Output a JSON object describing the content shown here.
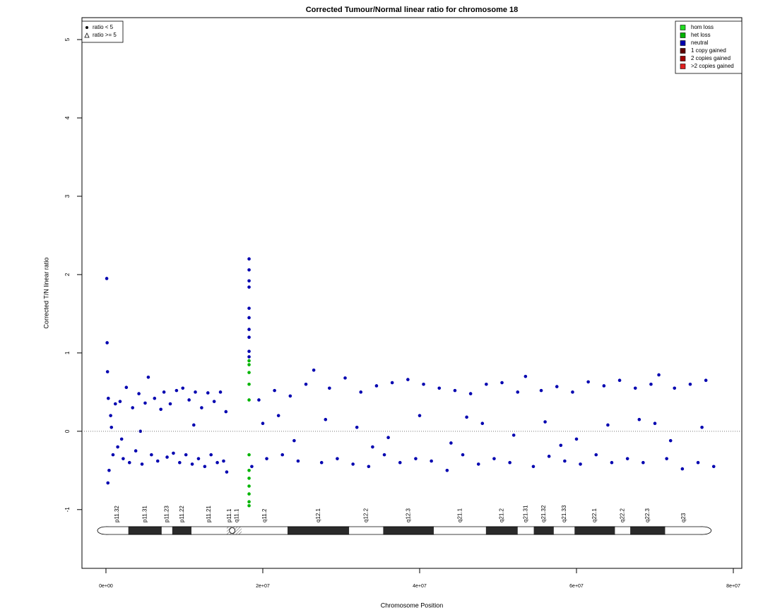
{
  "chart_data": {
    "type": "scatter",
    "title": "Corrected Tumour/Normal linear ratio for chromosome  18",
    "x_label": "Chromosome Position",
    "y_label": "Corrected T/N linear ratio",
    "xlim": [
      -3060000,
      81080000
    ],
    "ylim": [
      -1.75,
      5.28
    ],
    "xticks": [
      {
        "value": 0,
        "label": "0e+00"
      },
      {
        "value": 20000000,
        "label": "2e+07"
      },
      {
        "value": 40000000,
        "label": "4e+07"
      },
      {
        "value": 60000000,
        "label": "6e+07"
      },
      {
        "value": 80000000,
        "label": "8e+07"
      }
    ],
    "yticks": [
      -1,
      0,
      1,
      2,
      3,
      4,
      5
    ],
    "hline": 0,
    "shape_legend": [
      {
        "label": "ratio < 5",
        "shape": "dot"
      },
      {
        "label": "ratio >= 5",
        "shape": "triangle"
      }
    ],
    "series": [
      {
        "name": "hom loss",
        "color": "#22dd22",
        "x": [],
        "values": []
      },
      {
        "name": "het loss",
        "color": "#00b400",
        "x": [
          18250000,
          18250000,
          18250000,
          18250000,
          18250000,
          18250000,
          18250000,
          18250000,
          18250000,
          18250000,
          18250000,
          18250000
        ],
        "values": [
          0.9,
          0.85,
          0.75,
          0.6,
          0.4,
          -0.3,
          -0.5,
          -0.6,
          -0.7,
          -0.8,
          -0.9,
          -0.95
        ]
      },
      {
        "name": "neutral",
        "color": "#0000b0",
        "x": [
          100000,
          150000,
          200000,
          250000,
          300000,
          400000,
          600000,
          900000,
          1200000,
          1500000,
          1800000,
          2200000,
          2600000,
          3000000,
          3400000,
          3800000,
          4200000,
          4600000,
          5000000,
          5400000,
          5800000,
          6200000,
          6600000,
          7000000,
          7400000,
          7800000,
          8200000,
          8600000,
          9000000,
          9400000,
          9800000,
          10200000,
          10600000,
          11000000,
          11400000,
          11800000,
          12200000,
          12600000,
          13000000,
          13400000,
          13800000,
          14200000,
          14600000,
          15000000,
          15300000,
          15400000,
          700000,
          2000000,
          4400000,
          11200000,
          18250000,
          18250000,
          18250000,
          18250000,
          18250000,
          18250000,
          18250000,
          18250000,
          18250000,
          18250000,
          18600000,
          19500000,
          20500000,
          21500000,
          22500000,
          23500000,
          24500000,
          25500000,
          26500000,
          27500000,
          28500000,
          29500000,
          30500000,
          31500000,
          32500000,
          33500000,
          34500000,
          35500000,
          36500000,
          37500000,
          38500000,
          39500000,
          40500000,
          41500000,
          42500000,
          43500000,
          44500000,
          45500000,
          46500000,
          47500000,
          48500000,
          49500000,
          50500000,
          51500000,
          52500000,
          53500000,
          54500000,
          55500000,
          56500000,
          57500000,
          58500000,
          59500000,
          60500000,
          61500000,
          62500000,
          63500000,
          64500000,
          65500000,
          66500000,
          67500000,
          68500000,
          69500000,
          70500000,
          71500000,
          72500000,
          73500000,
          74500000,
          75500000,
          76500000,
          77500000,
          20000000,
          24000000,
          28000000,
          32000000,
          36000000,
          40000000,
          44000000,
          48000000,
          52000000,
          56000000,
          60000000,
          64000000,
          68000000,
          72000000,
          76000000,
          22000000,
          34000000,
          46000000,
          58000000,
          70000000
        ],
        "values": [
          1.95,
          1.13,
          0.76,
          -0.66,
          0.42,
          -0.5,
          0.2,
          -0.3,
          0.35,
          -0.2,
          0.38,
          -0.35,
          0.56,
          -0.4,
          0.3,
          -0.25,
          0.48,
          -0.42,
          0.36,
          0.69,
          -0.3,
          0.42,
          -0.38,
          0.28,
          0.5,
          -0.33,
          0.35,
          -0.28,
          0.52,
          -0.4,
          0.55,
          -0.3,
          0.4,
          -0.42,
          0.5,
          -0.35,
          0.3,
          -0.45,
          0.49,
          -0.3,
          0.38,
          -0.4,
          0.5,
          -0.38,
          0.25,
          -0.52,
          0.05,
          -0.1,
          0.0,
          0.08,
          2.2,
          2.06,
          1.92,
          1.84,
          1.57,
          1.45,
          1.3,
          1.2,
          1.02,
          0.95,
          -0.45,
          0.4,
          -0.35,
          0.52,
          -0.3,
          0.45,
          -0.38,
          0.6,
          0.78,
          -0.4,
          0.55,
          -0.35,
          0.68,
          -0.42,
          0.5,
          -0.45,
          0.58,
          -0.3,
          0.62,
          -0.4,
          0.66,
          -0.35,
          0.6,
          -0.38,
          0.55,
          -0.5,
          0.52,
          -0.3,
          0.48,
          -0.42,
          0.6,
          -0.35,
          0.62,
          -0.4,
          0.5,
          0.7,
          -0.45,
          0.52,
          -0.32,
          0.57,
          -0.38,
          0.5,
          -0.42,
          0.63,
          -0.3,
          0.58,
          -0.4,
          0.65,
          -0.35,
          0.55,
          -0.4,
          0.6,
          0.72,
          -0.35,
          0.55,
          -0.48,
          0.6,
          -0.4,
          0.65,
          -0.45,
          0.1,
          -0.12,
          0.15,
          0.05,
          -0.08,
          0.2,
          -0.15,
          0.1,
          -0.05,
          0.12,
          -0.1,
          0.08,
          0.15,
          -0.12,
          0.05,
          0.2,
          -0.2,
          0.18,
          -0.18,
          0.1
        ]
      },
      {
        "name": "1 copy gained",
        "color": "#600000",
        "x": [],
        "values": []
      },
      {
        "name": "2 copies gained",
        "color": "#a00000",
        "x": [],
        "values": []
      },
      {
        "name": ">2 copies gained",
        "color": "#e02020",
        "x": [],
        "values": []
      }
    ],
    "ideogram": [
      {
        "name": "p11.32",
        "start": 0,
        "end": 2900000,
        "stain": "gneg"
      },
      {
        "name": "p11.31",
        "start": 2900000,
        "end": 7100000,
        "stain": "gpos"
      },
      {
        "name": "p11.23",
        "start": 7100000,
        "end": 8500000,
        "stain": "gneg"
      },
      {
        "name": "p11.22",
        "start": 8500000,
        "end": 10900000,
        "stain": "gpos"
      },
      {
        "name": "p11.21",
        "start": 10900000,
        "end": 15400000,
        "stain": "gneg"
      },
      {
        "name": "p11.1",
        "start": 15400000,
        "end": 16100000,
        "stain": "acen"
      },
      {
        "name": "q11.1",
        "start": 16100000,
        "end": 17300000,
        "stain": "acen"
      },
      {
        "name": "q11.2",
        "start": 17300000,
        "end": 23200000,
        "stain": "gneg"
      },
      {
        "name": "q12.1",
        "start": 23200000,
        "end": 31000000,
        "stain": "gpos"
      },
      {
        "name": "q12.2",
        "start": 31000000,
        "end": 35400000,
        "stain": "gneg"
      },
      {
        "name": "q12.3",
        "start": 35400000,
        "end": 41800000,
        "stain": "gpos"
      },
      {
        "name": "q21.1",
        "start": 41800000,
        "end": 48500000,
        "stain": "gneg"
      },
      {
        "name": "q21.2",
        "start": 48500000,
        "end": 52500000,
        "stain": "gpos"
      },
      {
        "name": "q21.31",
        "start": 52500000,
        "end": 54600000,
        "stain": "gneg"
      },
      {
        "name": "q21.32",
        "start": 54600000,
        "end": 57100000,
        "stain": "gpos"
      },
      {
        "name": "q21.33",
        "start": 57100000,
        "end": 59800000,
        "stain": "gneg"
      },
      {
        "name": "q22.1",
        "start": 59800000,
        "end": 64900000,
        "stain": "gpos"
      },
      {
        "name": "q22.2",
        "start": 64900000,
        "end": 66900000,
        "stain": "gneg"
      },
      {
        "name": "q22.3",
        "start": 66900000,
        "end": 71300000,
        "stain": "gpos"
      },
      {
        "name": "q23",
        "start": 71300000,
        "end": 76100000,
        "stain": "gneg"
      }
    ]
  }
}
